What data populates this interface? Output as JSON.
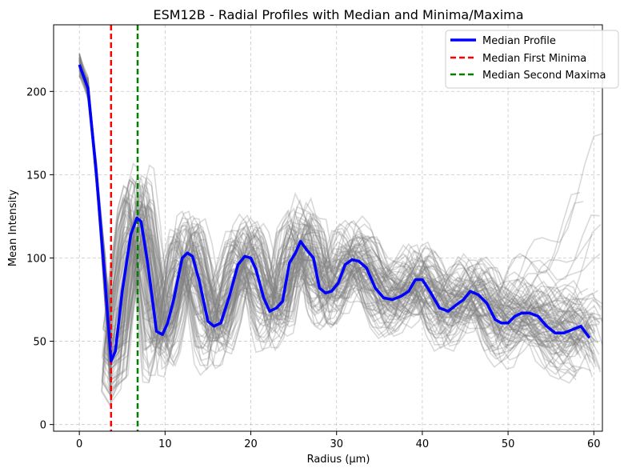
{
  "chart_data": {
    "type": "line",
    "title": "ESM12B - Radial Profiles with Median and Minima/Maxima",
    "xlabel": "Radius (μm)",
    "ylabel": "Mean Intensity",
    "xlim": [
      -3,
      61
    ],
    "ylim": [
      -4,
      240
    ],
    "xticks": [
      0,
      10,
      20,
      30,
      40,
      50,
      60
    ],
    "yticks": [
      0,
      50,
      100,
      150,
      200
    ],
    "grid": true,
    "legend_position": "top-right",
    "median_profile": {
      "name": "Median Profile",
      "color": "#0000ff",
      "x": [
        0,
        1,
        2,
        3,
        3.7,
        4.2,
        5,
        6,
        6.7,
        7.2,
        8,
        9,
        9.7,
        10.3,
        11,
        12,
        12.6,
        13.2,
        14,
        15,
        15.7,
        16.5,
        17.5,
        18.5,
        19.3,
        20,
        20.6,
        21.5,
        22.2,
        23,
        23.7,
        24.5,
        25.2,
        25.8,
        26.5,
        27.3,
        28,
        28.7,
        29.4,
        30.2,
        31,
        31.8,
        32.6,
        33.5,
        34.5,
        35.5,
        36.5,
        37.5,
        38.4,
        39.2,
        40,
        41,
        42,
        43,
        44,
        44.8,
        45.6,
        46.5,
        47.5,
        48.5,
        49.2,
        50,
        50.8,
        51.6,
        52.5,
        53.5,
        54.5,
        55.5,
        56.5,
        57.5,
        58.5,
        59.5
      ],
      "y": [
        216,
        202,
        150,
        86,
        38,
        44,
        80,
        114,
        124,
        122,
        96,
        56,
        54,
        61,
        75,
        100,
        103,
        101,
        86,
        62,
        59,
        61,
        77,
        96,
        101,
        100,
        93,
        76,
        68,
        70,
        74,
        97,
        103,
        110,
        105,
        100,
        82,
        79,
        80,
        85,
        96,
        99,
        98,
        94,
        82,
        76,
        75,
        77,
        80,
        87,
        87,
        79,
        70,
        68,
        72,
        75,
        80,
        78,
        73,
        63,
        61,
        61,
        65,
        67,
        67,
        65,
        59,
        55,
        55,
        57,
        59,
        52
      ]
    },
    "reference_lines": [
      {
        "name": "Median First Minima",
        "x": 3.7,
        "color": "#ff0000",
        "style": "dashed"
      },
      {
        "name": "Median Second Maxima",
        "x": 6.8,
        "color": "#008000",
        "style": "dashed"
      }
    ],
    "background_profiles": {
      "color": "#808080",
      "opacity": 0.3,
      "count": 90
    }
  }
}
